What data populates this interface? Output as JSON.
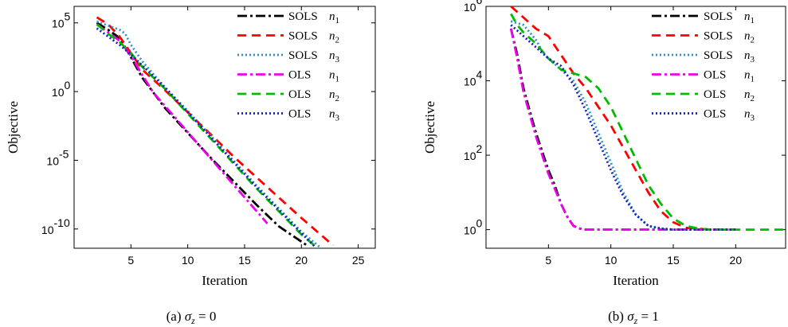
{
  "chart_data": [
    {
      "type": "line",
      "caption_prefix": "(a)",
      "caption_var": "σ",
      "caption_sub": "z",
      "caption_rest": " = 0",
      "xlabel": "Iteration",
      "ylabel": "Objective",
      "yscale": "log",
      "xlim": [
        0,
        26.5
      ],
      "ylim": [
        -11.4,
        6.2
      ],
      "xticks": [
        "5",
        "10",
        "15",
        "20",
        "25"
      ],
      "xtick_values": [
        5,
        10,
        15,
        20,
        25
      ],
      "yticks": [
        "10",
        "10",
        "10",
        "10"
      ],
      "ytick_exponents": [
        "5",
        "0",
        "-5",
        "-10"
      ],
      "ytick_values": [
        5,
        0,
        -5,
        -10
      ],
      "legend_position": "top-right",
      "grid": false,
      "series": [
        {
          "name": "SOLS",
          "sub": "1",
          "color": "#000000",
          "dash": "12,4,3,4",
          "x": [
            2,
            3,
            4,
            5,
            6,
            8,
            10,
            12,
            14,
            16,
            18,
            20.5
          ],
          "y": [
            5.0,
            4.5,
            3.9,
            2.5,
            1.0,
            -1.2,
            -3.0,
            -4.8,
            -6.5,
            -8.2,
            -9.8,
            -11.2
          ]
        },
        {
          "name": "SOLS",
          "sub": "2",
          "color": "#ff0000",
          "dash": "11,7",
          "x": [
            2,
            3,
            4,
            5,
            6,
            8,
            10,
            12,
            14,
            16,
            18,
            20,
            22.8
          ],
          "y": [
            5.4,
            4.9,
            4.0,
            2.8,
            1.6,
            0.1,
            -1.5,
            -3.1,
            -4.7,
            -6.2,
            -7.7,
            -9.2,
            -11.2
          ]
        },
        {
          "name": "SOLS",
          "sub": "3",
          "color": "#3090c8",
          "dash": "2,3",
          "x": [
            2,
            3,
            4,
            4.5,
            5,
            6,
            8,
            10,
            12,
            14,
            16,
            18,
            20,
            21.6
          ],
          "y": [
            5.1,
            4.8,
            4.5,
            4.2,
            3.4,
            2.2,
            0.3,
            -1.4,
            -3.2,
            -5.0,
            -6.8,
            -8.5,
            -10.2,
            -11.3
          ]
        },
        {
          "name": "OLS",
          "sub": "1",
          "color": "#ee00ee",
          "dash": "12,4,3,4",
          "x": [
            2,
            3,
            4,
            5,
            6,
            7,
            9,
            11,
            13,
            15,
            17
          ],
          "y": [
            4.9,
            4.3,
            3.7,
            2.6,
            1.2,
            -0.1,
            -2.0,
            -3.9,
            -5.8,
            -7.7,
            -9.6
          ]
        },
        {
          "name": "OLS",
          "sub": "2",
          "color": "#00bb00",
          "dash": "11,7",
          "x": [
            2,
            3,
            4,
            5,
            6,
            8,
            10,
            12,
            14,
            16,
            18,
            20,
            21.3
          ],
          "y": [
            4.9,
            4.2,
            3.6,
            2.8,
            1.8,
            0.2,
            -1.6,
            -3.4,
            -5.2,
            -7.0,
            -8.7,
            -10.4,
            -11.3
          ]
        },
        {
          "name": "OLS",
          "sub": "3",
          "color": "#1020c8",
          "dash": "2,3",
          "x": [
            2,
            3,
            4,
            5,
            6,
            8,
            10,
            12,
            14,
            16,
            18,
            20,
            21.2
          ],
          "y": [
            4.6,
            4.0,
            3.4,
            2.7,
            1.9,
            0.3,
            -1.5,
            -3.3,
            -5.1,
            -6.9,
            -8.6,
            -10.3,
            -11.3
          ]
        }
      ]
    },
    {
      "type": "line",
      "caption_prefix": "(b)",
      "caption_var": "σ",
      "caption_sub": "z",
      "caption_rest": " = 1",
      "xlabel": "Iteration",
      "ylabel": "Objective",
      "yscale": "log",
      "xlim": [
        0,
        24
      ],
      "ylim": [
        -0.5,
        6.0
      ],
      "xticks": [
        "5",
        "10",
        "15",
        "20"
      ],
      "xtick_values": [
        5,
        10,
        15,
        20
      ],
      "yticks": [
        "10",
        "10",
        "10",
        "10"
      ],
      "ytick_exponents": [
        "6",
        "4",
        "2",
        "0"
      ],
      "ytick_values": [
        6,
        4,
        2,
        0
      ],
      "legend_position": "top-right",
      "grid": false,
      "series": [
        {
          "name": "SOLS",
          "sub": "1",
          "color": "#000000",
          "dash": "12,4,3,4",
          "x": [
            2,
            2.5,
            3,
            3.5,
            4,
            4.5,
            5,
            5.5,
            6,
            6.5,
            7,
            7.5,
            8,
            10,
            14,
            18,
            20
          ],
          "y": [
            5.4,
            4.7,
            3.8,
            3.2,
            2.6,
            2.1,
            1.6,
            1.2,
            0.7,
            0.35,
            0.1,
            0.03,
            0.0,
            0.0,
            0.0,
            0.0,
            0.0
          ]
        },
        {
          "name": "SOLS",
          "sub": "2",
          "color": "#ff0000",
          "dash": "11,7",
          "x": [
            2,
            3,
            4,
            5,
            6,
            7,
            8,
            9,
            10,
            11,
            12,
            13,
            14,
            15,
            16,
            18,
            20
          ],
          "y": [
            6.0,
            5.7,
            5.4,
            5.2,
            4.7,
            4.2,
            3.8,
            3.3,
            2.8,
            2.2,
            1.6,
            1.0,
            0.5,
            0.2,
            0.05,
            0.0,
            0.0
          ]
        },
        {
          "name": "SOLS",
          "sub": "3",
          "color": "#3090c8",
          "dash": "2,3",
          "x": [
            2,
            3,
            4,
            4.5,
            5,
            6,
            7,
            8,
            9,
            10,
            11,
            12,
            13,
            14,
            15,
            17,
            20
          ],
          "y": [
            5.6,
            5.5,
            5.1,
            4.8,
            4.6,
            4.3,
            4.0,
            3.4,
            2.6,
            1.8,
            1.0,
            0.4,
            0.1,
            0.03,
            0.0,
            0.0,
            0.0
          ]
        },
        {
          "name": "OLS",
          "sub": "1",
          "color": "#ee00ee",
          "dash": "12,4,3,4",
          "x": [
            2,
            2.5,
            3,
            3.5,
            4,
            4.5,
            5,
            5.5,
            6,
            6.5,
            7,
            7.5,
            8,
            10,
            14,
            18,
            20
          ],
          "y": [
            5.4,
            4.6,
            3.7,
            3.1,
            2.5,
            2.0,
            1.5,
            1.1,
            0.7,
            0.35,
            0.1,
            0.03,
            0.0,
            0.0,
            0.0,
            0.0,
            0.0
          ]
        },
        {
          "name": "OLS",
          "sub": "2",
          "color": "#00bb00",
          "dash": "11,7",
          "x": [
            2,
            2.5,
            3,
            4,
            5,
            6,
            7,
            8,
            9,
            10,
            11,
            12,
            13,
            14,
            15,
            16,
            17,
            18,
            20,
            22,
            24
          ],
          "y": [
            5.8,
            5.5,
            5.3,
            5.0,
            4.6,
            4.3,
            4.2,
            4.1,
            3.8,
            3.3,
            2.6,
            1.9,
            1.2,
            0.7,
            0.3,
            0.1,
            0.03,
            0.0,
            0.0,
            0.0,
            0.0
          ]
        },
        {
          "name": "OLS",
          "sub": "3",
          "color": "#1020c8",
          "dash": "2,3",
          "x": [
            2,
            3,
            4,
            5,
            6,
            7,
            8,
            9,
            10,
            11,
            12,
            13,
            14,
            15,
            17,
            20
          ],
          "y": [
            5.5,
            5.2,
            4.9,
            4.6,
            4.4,
            3.9,
            3.2,
            2.4,
            1.6,
            0.9,
            0.4,
            0.1,
            0.03,
            0.0,
            0.0,
            0.0
          ]
        }
      ]
    }
  ]
}
